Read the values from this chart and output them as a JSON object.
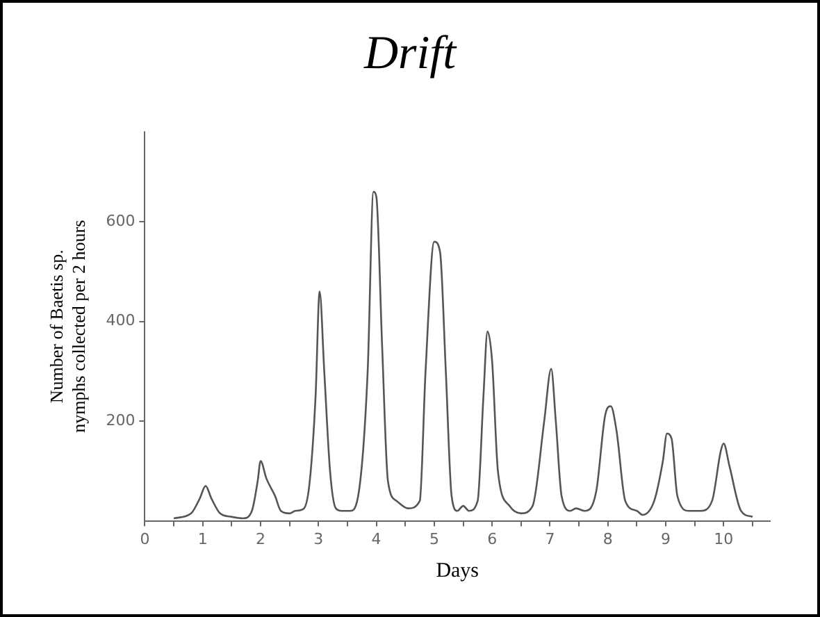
{
  "chart_data": {
    "type": "line",
    "title": "Drift",
    "xlabel": "Days",
    "ylabel": "Number of Baetis sp. nymphs collected per 2 hours",
    "x": [
      0.5,
      0.8,
      0.95,
      1.05,
      1.15,
      1.3,
      1.5,
      1.7,
      1.85,
      1.95,
      2.0,
      2.1,
      2.25,
      2.35,
      2.5,
      2.6,
      2.75,
      2.85,
      2.95,
      3.02,
      3.1,
      3.2,
      3.3,
      3.4,
      3.55,
      3.7,
      3.85,
      3.95,
      4.0,
      4.1,
      4.2,
      4.35,
      4.55,
      4.75,
      4.85,
      5.0,
      5.1,
      5.2,
      5.3,
      5.4,
      5.5,
      5.6,
      5.75,
      5.85,
      5.92,
      6.0,
      6.1,
      6.3,
      6.5,
      6.7,
      6.9,
      7.02,
      7.1,
      7.2,
      7.35,
      7.45,
      7.6,
      7.8,
      7.95,
      8.05,
      8.15,
      8.3,
      8.5,
      8.6,
      8.8,
      8.95,
      9.02,
      9.1,
      9.2,
      9.4,
      9.6,
      9.8,
      9.95,
      10.0,
      10.1,
      10.3,
      10.5
    ],
    "series": [
      {
        "color": "#555555",
        "values": [
          5,
          15,
          45,
          70,
          45,
          15,
          8,
          5,
          20,
          80,
          120,
          85,
          50,
          20,
          15,
          20,
          25,
          80,
          250,
          460,
          300,
          100,
          25,
          20,
          20,
          60,
          300,
          660,
          650,
          350,
          80,
          40,
          25,
          40,
          300,
          560,
          540,
          300,
          50,
          20,
          30,
          20,
          40,
          250,
          380,
          320,
          100,
          30,
          15,
          30,
          200,
          305,
          200,
          50,
          20,
          25,
          20,
          60,
          210,
          230,
          180,
          40,
          20,
          12,
          40,
          120,
          175,
          165,
          50,
          20,
          20,
          40,
          140,
          155,
          110,
          20,
          8
        ]
      }
    ],
    "xlim": [
      0,
      10.8
    ],
    "ylim": [
      0,
      780
    ],
    "xticks": [
      0,
      {
        "value": 0.5,
        "label": null
      },
      1,
      {
        "value": 1.5,
        "label": null
      },
      2,
      {
        "value": 2.5,
        "label": null
      },
      3,
      {
        "value": 3.5,
        "label": null
      },
      4,
      {
        "value": 4.5,
        "label": null
      },
      5,
      {
        "value": 5.5,
        "label": null
      },
      6,
      {
        "value": 6.5,
        "label": null
      },
      7,
      {
        "value": 7.5,
        "label": null
      },
      8,
      {
        "value": 8.5,
        "label": null
      },
      9,
      {
        "value": 9.5,
        "label": null
      },
      10,
      {
        "value": 10.5,
        "label": null
      }
    ],
    "yticks": [
      200,
      400,
      600
    ],
    "grid": false,
    "legend": false,
    "marker": "none",
    "line_style": "solid"
  }
}
